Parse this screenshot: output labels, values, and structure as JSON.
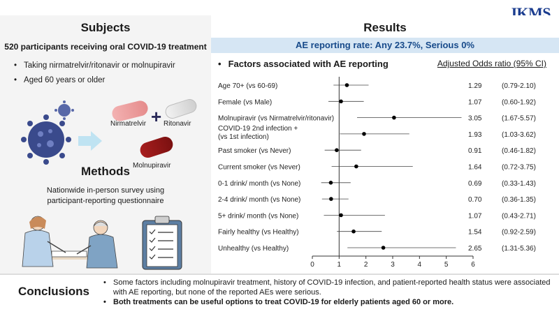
{
  "logo": "JKMS",
  "subjects": {
    "title": "Subjects",
    "participants": "520 participants receiving oral COVID-19 treatment",
    "bullets": [
      "Taking nirmatrelvir/ritonavir or molnupiravir",
      "Aged 60 years or older"
    ],
    "drug_labels": {
      "nirmatrelvir": "Nirmatrelvir",
      "ritonavir": "Ritonavir",
      "molnupiravir": "Molnupiravir"
    }
  },
  "methods": {
    "title": "Methods",
    "line1": "Nationwide in-person survey using",
    "line2": "participant-reporting questionnaire"
  },
  "results": {
    "title": "Results",
    "ae_rate": "AE reporting rate: Any 23.7%, Serious 0%",
    "factors_heading": "Factors associated with AE reporting",
    "or_heading": "Adjusted Odds ratio (95% CI)"
  },
  "chart_data": {
    "type": "forest",
    "title": "Factors associated with AE reporting",
    "xlabel": "Adjusted Odds ratio (95% CI)",
    "xlim": [
      0,
      6
    ],
    "xticks": [
      0,
      1,
      2,
      3,
      4,
      5,
      6
    ],
    "reference_line": 1,
    "rows": [
      {
        "label": [
          "Age 70+ (vs 60-69)"
        ],
        "or": 1.29,
        "lo": 0.79,
        "hi": 2.1,
        "or_text": "1.29",
        "ci_text": "(0.79-2.10)"
      },
      {
        "label": [
          "Female (vs Male)"
        ],
        "or": 1.07,
        "lo": 0.6,
        "hi": 1.92,
        "or_text": "1.07",
        "ci_text": "(0.60-1.92)"
      },
      {
        "label": [
          "Molnupiravir (vs Nirmatrelvir/ritonavir)"
        ],
        "or": 3.05,
        "lo": 1.67,
        "hi": 5.57,
        "or_text": "3.05",
        "ci_text": "(1.67-5.57)"
      },
      {
        "label": [
          "COVID-19 2nd infection +",
          "(vs 1st infection)"
        ],
        "or": 1.93,
        "lo": 1.03,
        "hi": 3.62,
        "or_text": "1.93",
        "ci_text": "(1.03-3.62)"
      },
      {
        "label": [
          "Past smoker (vs Never)"
        ],
        "or": 0.91,
        "lo": 0.46,
        "hi": 1.82,
        "or_text": "0.91",
        "ci_text": "(0.46-1.82)"
      },
      {
        "label": [
          "Current smoker (vs Never)"
        ],
        "or": 1.64,
        "lo": 0.72,
        "hi": 3.75,
        "or_text": "1.64",
        "ci_text": "(0.72-3.75)"
      },
      {
        "label": [
          "0-1 drink/ month (vs None)"
        ],
        "or": 0.69,
        "lo": 0.33,
        "hi": 1.43,
        "or_text": "0.69",
        "ci_text": "(0.33-1.43)"
      },
      {
        "label": [
          "2-4 drink/ month (vs None)"
        ],
        "or": 0.7,
        "lo": 0.36,
        "hi": 1.35,
        "or_text": "0.70",
        "ci_text": "(0.36-1.35)"
      },
      {
        "label": [
          "5+ drink/ month (vs None)"
        ],
        "or": 1.07,
        "lo": 0.43,
        "hi": 2.71,
        "or_text": "1.07",
        "ci_text": "(0.43-2.71)"
      },
      {
        "label": [
          "Fairly healthy (vs Healthy)"
        ],
        "or": 1.54,
        "lo": 0.92,
        "hi": 2.59,
        "or_text": "1.54",
        "ci_text": "(0.92-2.59)"
      },
      {
        "label": [
          "Unhealthy (vs Healthy)"
        ],
        "or": 2.65,
        "lo": 1.31,
        "hi": 5.36,
        "or_text": "2.65",
        "ci_text": "(1.31-5.36)"
      }
    ]
  },
  "conclusions": {
    "title": "Conclusions",
    "point1": "Some factors including molnupiravir treatment, history of COVID-19 infection, and patient-reported health status were associated with AE reporting, but none of the reported AEs were serious.",
    "point2": "Both treatments can be useful options to treat COVID-19 for elderly patients aged 60 or more."
  }
}
